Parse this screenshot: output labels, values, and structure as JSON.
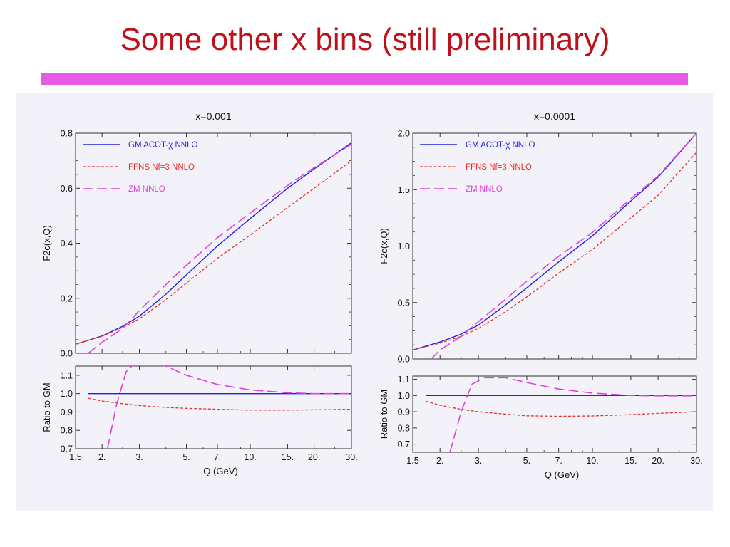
{
  "slide": {
    "title": "Some other x bins (still preliminary)",
    "accent_color": "#e65ae6",
    "title_color": "#c0101a"
  },
  "series_styles": {
    "gm": "#2222dd",
    "ffns": "#e8302a",
    "zm": "#e040e0"
  },
  "chart_data": [
    {
      "type": "line",
      "title": "x=0.001",
      "xlabel": "Q (GeV)",
      "xscale": "log",
      "xlim": [
        1.5,
        30
      ],
      "xticks": [
        1.5,
        2,
        3,
        5,
        7,
        10,
        15,
        20,
        30
      ],
      "xtick_labels": [
        "1.5",
        "2.",
        "3.",
        "5.",
        "7.",
        "10.",
        "15.",
        "20.",
        "30."
      ],
      "legend_position": "top-left",
      "top": {
        "ylabel": "F2c(x,Q)",
        "ylim": [
          0,
          0.8
        ],
        "yticks": [
          0,
          0.2,
          0.4,
          0.6,
          0.8
        ],
        "ytick_labels": [
          "0.0",
          "0.2",
          "0.4",
          "0.6",
          "0.8"
        ],
        "series": [
          {
            "name": "GM ACOT-χ NNLO",
            "key": "gm",
            "x": [
              1.5,
              2,
              2.5,
              3,
              4,
              5,
              7,
              10,
              15,
              20,
              30
            ],
            "y": [
              0.033,
              0.063,
              0.098,
              0.135,
              0.215,
              0.285,
              0.39,
              0.49,
              0.6,
              0.67,
              0.765
            ]
          },
          {
            "name": "FFNS Nf=3 NNLO",
            "key": "ffns",
            "x": [
              1.5,
              2,
              2.5,
              3,
              4,
              5,
              7,
              10,
              15,
              20,
              30
            ],
            "y": [
              0.033,
              0.062,
              0.094,
              0.125,
              0.195,
              0.255,
              0.345,
              0.43,
              0.53,
              0.6,
              0.7
            ]
          },
          {
            "name": "ZM NNLO",
            "key": "zm",
            "x": [
              1.72,
              2,
              2.5,
              3,
              4,
              5,
              7,
              10,
              15,
              20,
              30
            ],
            "y": [
              0.0,
              0.04,
              0.09,
              0.155,
              0.25,
              0.32,
              0.42,
              0.51,
              0.61,
              0.675,
              0.76
            ]
          }
        ]
      },
      "bottom": {
        "ylabel": "Ratio to GM",
        "ylim": [
          0.7,
          1.15
        ],
        "yticks": [
          0.7,
          0.8,
          0.9,
          1.0,
          1.1
        ],
        "ytick_labels": [
          "0.7",
          "0.8",
          "0.9",
          "1.0",
          "1.1"
        ],
        "series": [
          {
            "key": "gm",
            "x": [
              1.72,
              30
            ],
            "y": [
              1.0,
              1.0
            ]
          },
          {
            "key": "ffns",
            "x": [
              1.72,
              2,
              2.5,
              3,
              4,
              5,
              7,
              10,
              15,
              20,
              30
            ],
            "y": [
              0.975,
              0.96,
              0.945,
              0.935,
              0.925,
              0.92,
              0.915,
              0.91,
              0.91,
              0.912,
              0.915
            ]
          },
          {
            "key": "zm",
            "x": [
              2.12,
              2.35,
              2.6,
              2.85,
              3.2,
              4,
              5,
              7,
              10,
              15,
              20,
              30
            ],
            "y": [
              0.7,
              0.95,
              1.12,
              1.165,
              1.165,
              1.15,
              1.1,
              1.05,
              1.02,
              1.005,
              1.0,
              1.0
            ]
          }
        ]
      }
    },
    {
      "type": "line",
      "title": "x=0.0001",
      "xlabel": "Q (GeV)",
      "xscale": "log",
      "xlim": [
        1.5,
        30
      ],
      "xticks": [
        1.5,
        2,
        3,
        5,
        7,
        10,
        15,
        20,
        30
      ],
      "xtick_labels": [
        "1.5",
        "2.",
        "3.",
        "5.",
        "7.",
        "10.",
        "15.",
        "20.",
        "30."
      ],
      "legend_position": "top-left",
      "top": {
        "ylabel": "F2c(x,Q)",
        "ylim": [
          0,
          2.0
        ],
        "yticks": [
          0,
          0.5,
          1.0,
          1.5,
          2.0
        ],
        "ytick_labels": [
          "0.0",
          "0.5",
          "1.0",
          "1.5",
          "2.0"
        ],
        "series": [
          {
            "name": "GM ACOT-χ NNLO",
            "key": "gm",
            "x": [
              1.5,
              2,
              2.5,
              3,
              4,
              5,
              7,
              10,
              15,
              20,
              30
            ],
            "y": [
              0.08,
              0.15,
              0.22,
              0.3,
              0.48,
              0.63,
              0.86,
              1.09,
              1.4,
              1.61,
              2.0
            ]
          },
          {
            "name": "FFNS Nf=3 NNLO",
            "key": "ffns",
            "x": [
              1.5,
              2,
              2.5,
              3,
              4,
              5,
              7,
              10,
              15,
              20,
              30
            ],
            "y": [
              0.08,
              0.14,
              0.2,
              0.27,
              0.42,
              0.55,
              0.76,
              0.97,
              1.25,
              1.45,
              1.83
            ]
          },
          {
            "name": "ZM NNLO",
            "key": "zm",
            "x": [
              1.82,
              2,
              2.5,
              3,
              4,
              5,
              7,
              10,
              15,
              20,
              30
            ],
            "y": [
              0.0,
              0.08,
              0.2,
              0.33,
              0.53,
              0.69,
              0.91,
              1.12,
              1.42,
              1.62,
              2.0
            ]
          }
        ]
      },
      "bottom": {
        "ylabel": "Ratio to GM",
        "ylim": [
          0.65,
          1.12
        ],
        "yticks": [
          0.7,
          0.8,
          0.9,
          1.0,
          1.1
        ],
        "ytick_labels": [
          "0.7",
          "0.8",
          "0.9",
          "1.0",
          "1.1"
        ],
        "series": [
          {
            "key": "gm",
            "x": [
              1.72,
              30
            ],
            "y": [
              1.0,
              1.0
            ]
          },
          {
            "key": "ffns",
            "x": [
              1.72,
              2,
              2.5,
              3,
              4,
              5,
              7,
              10,
              15,
              20,
              30
            ],
            "y": [
              0.965,
              0.94,
              0.915,
              0.9,
              0.885,
              0.875,
              0.872,
              0.874,
              0.882,
              0.89,
              0.9
            ]
          },
          {
            "key": "zm",
            "x": [
              2.22,
              2.5,
              2.8,
              3.2,
              4,
              5,
              7,
              10,
              15,
              20,
              30
            ],
            "y": [
              0.65,
              0.9,
              1.07,
              1.11,
              1.11,
              1.08,
              1.04,
              1.015,
              1.0,
              0.998,
              0.998
            ]
          }
        ]
      }
    }
  ]
}
